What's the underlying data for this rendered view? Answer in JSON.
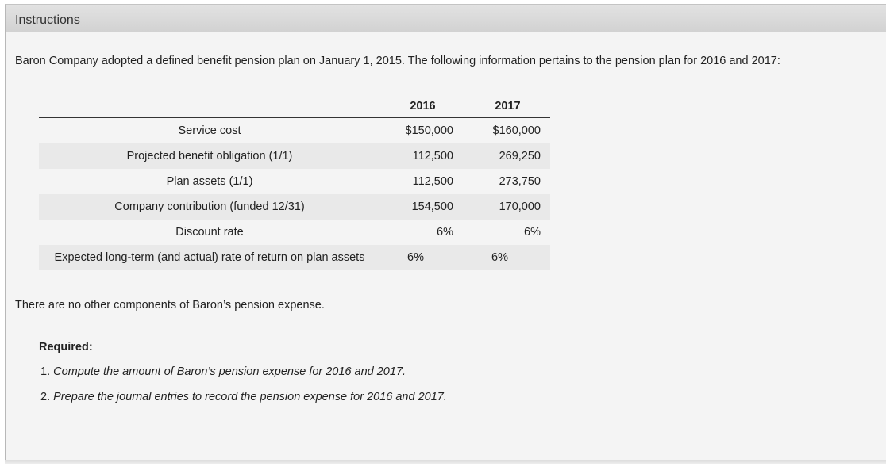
{
  "header": {
    "title": "Instructions"
  },
  "intro": "Baron Company adopted a defined benefit pension plan on January 1, 2015. The following information pertains to the pension plan for 2016 and 2017:",
  "table": {
    "columns": [
      "2016",
      "2017"
    ],
    "rows": [
      {
        "label": "Service cost",
        "v2016": "$150,000",
        "v2017": "$160,000"
      },
      {
        "label": "Projected benefit obligation (1/1)",
        "v2016": "112,500",
        "v2017": "269,250"
      },
      {
        "label": "Plan assets (1/1)",
        "v2016": "112,500",
        "v2017": "273,750"
      },
      {
        "label": "Company contribution (funded 12/31)",
        "v2016": "154,500",
        "v2017": "170,000"
      },
      {
        "label": "Discount rate",
        "v2016": "6%",
        "v2017": "6%"
      },
      {
        "label": "Expected long-term (and actual) rate of return on plan assets",
        "v2016": "6%",
        "v2017": "6%"
      }
    ]
  },
  "note": "There are no other components of Baron’s pension expense.",
  "required": {
    "heading": "Required:",
    "items": [
      {
        "num": "1.",
        "text": "Compute the amount of Baron’s pension expense for 2016 and 2017."
      },
      {
        "num": "2.",
        "text": "Prepare the journal entries to record the pension expense for 2016 and 2017."
      }
    ]
  }
}
